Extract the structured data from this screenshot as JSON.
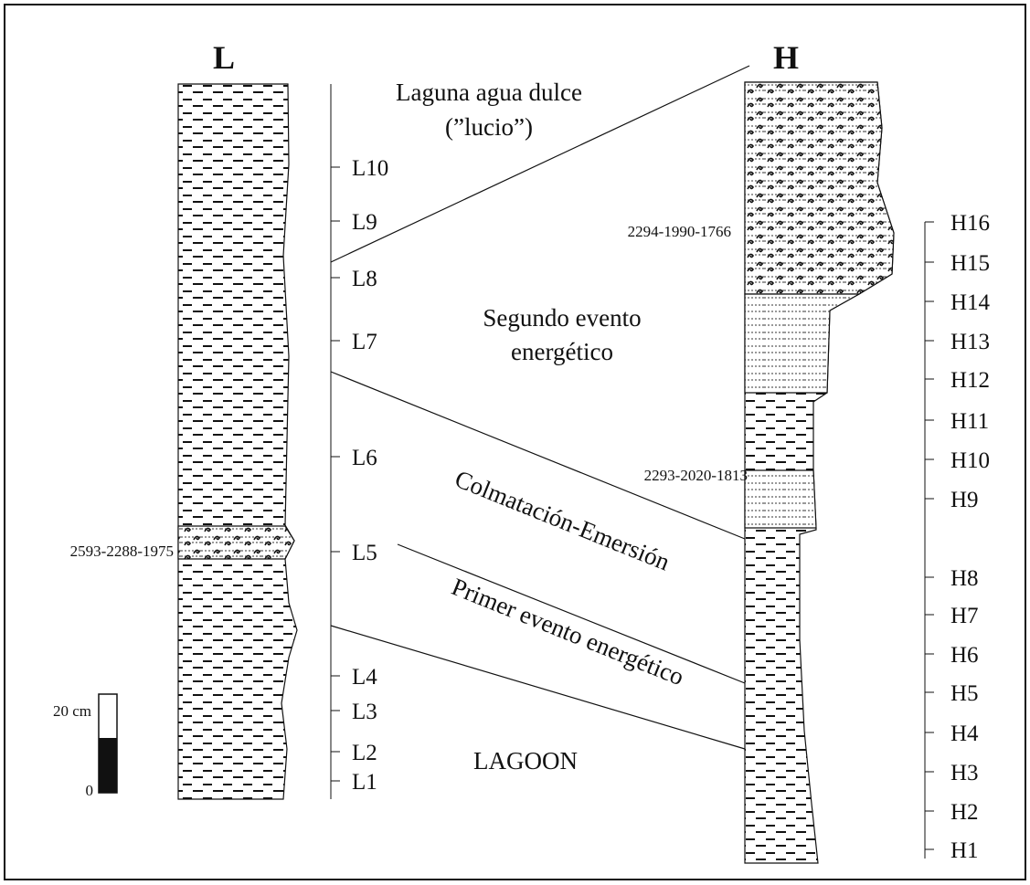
{
  "columns": [
    {
      "title": "L",
      "samples": [
        "L10",
        "L9",
        "L8",
        "L7",
        "L6",
        "L5",
        "L4",
        "L3",
        "L2",
        "L1"
      ]
    },
    {
      "title": "H",
      "samples": [
        "H16",
        "H15",
        "H14",
        "H13",
        "H12",
        "H11",
        "H10",
        "H9",
        "H8",
        "H7",
        "H6",
        "H5",
        "H4",
        "H3",
        "H2",
        "H1"
      ]
    }
  ],
  "annotations": [
    "Laguna agua dulce",
    "(”lucio”)",
    "Segundo evento",
    "energético",
    "Colmatación-Emersión",
    "Primer evento energético",
    "LAGOON"
  ],
  "dates": [
    "2294-1990-1766",
    "2293-2020-1813",
    "2593-2288-1975"
  ],
  "scale": {
    "top": "20 cm",
    "bottom": "0"
  }
}
